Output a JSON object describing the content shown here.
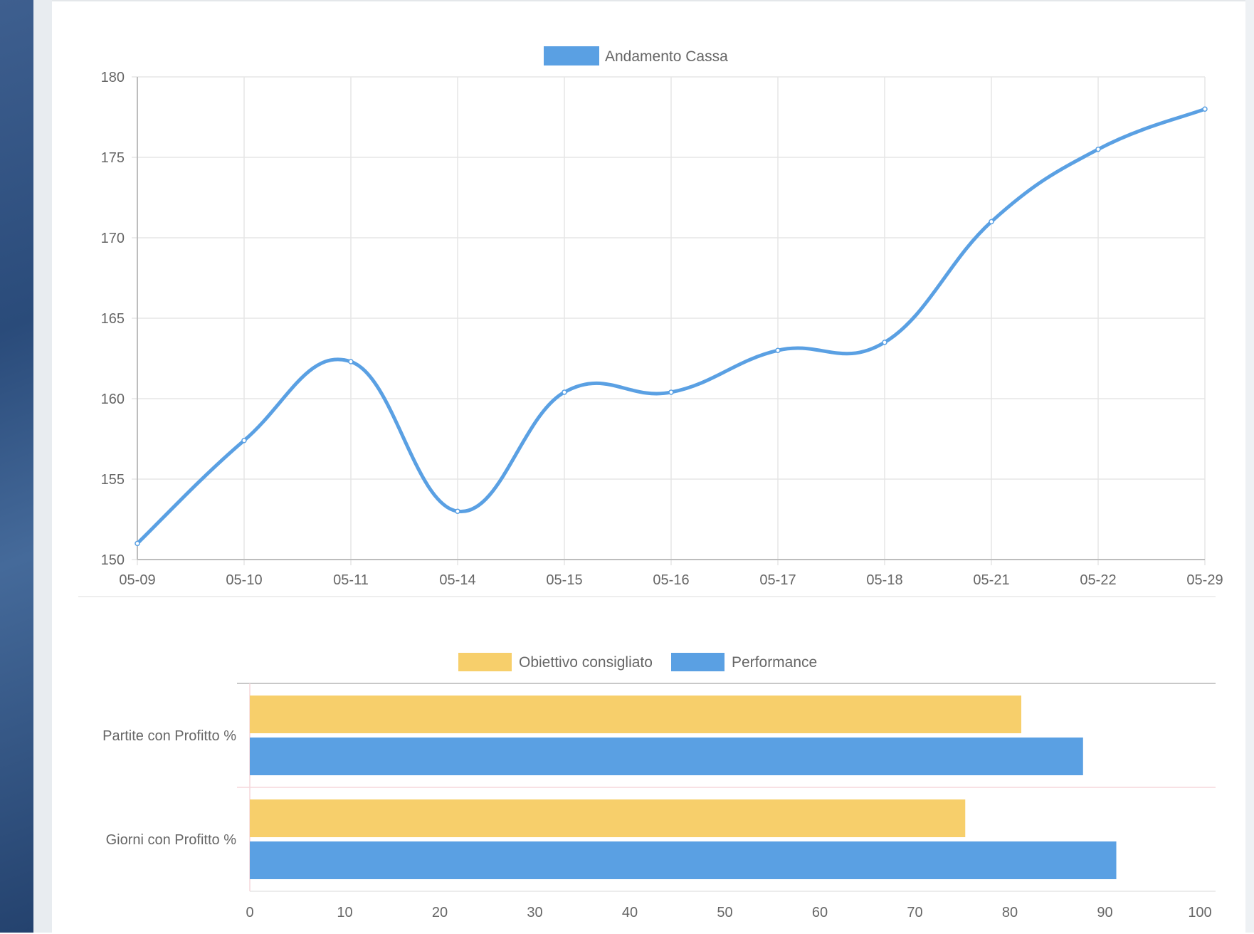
{
  "chart_data": [
    {
      "type": "line",
      "x": [
        "05-09",
        "05-10",
        "05-11",
        "05-14",
        "05-15",
        "05-16",
        "05-17",
        "05-18",
        "05-21",
        "05-22",
        "05-29"
      ],
      "series": [
        {
          "name": "Andamento Cassa",
          "color": "#5aa0e3",
          "values": [
            151.0,
            157.4,
            162.3,
            153.0,
            160.4,
            160.4,
            163.0,
            163.5,
            171.0,
            175.5,
            178.0
          ]
        }
      ],
      "ylim": [
        150,
        180
      ],
      "yticks": [
        "180",
        "175",
        "170",
        "165",
        "160",
        "155",
        "150"
      ],
      "grid": true,
      "legend": "top-center"
    },
    {
      "type": "bar",
      "orientation": "horizontal",
      "categories": [
        "Partite con Profitto %",
        "Giorni con Profitto %"
      ],
      "series": [
        {
          "name": "Obiettivo consigliato",
          "color": "#f7cf6b",
          "values": [
            81.2,
            75.3
          ]
        },
        {
          "name": "Performance",
          "color": "#5aa0e3",
          "values": [
            87.7,
            91.2
          ]
        }
      ],
      "xlim": [
        0,
        100
      ],
      "xticks": [
        "0",
        "10",
        "20",
        "30",
        "40",
        "50",
        "60",
        "70",
        "80",
        "90",
        "100"
      ],
      "legend": "top-center"
    }
  ]
}
